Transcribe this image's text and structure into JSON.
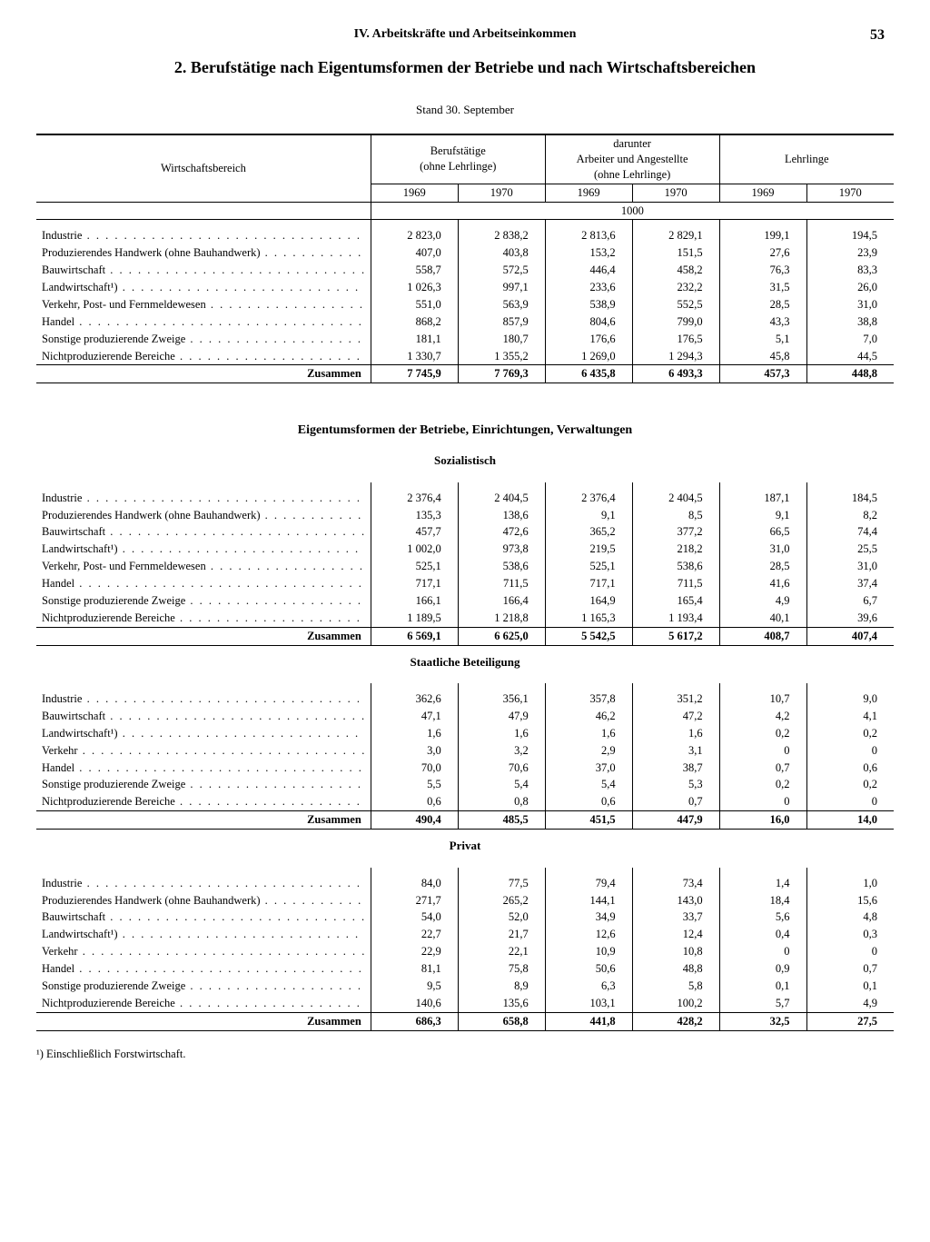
{
  "header": {
    "chapter": "IV. Arbeitskräfte und Arbeitseinkommen",
    "page_number": "53"
  },
  "title": "2. Berufstätige nach Eigentumsformen der Betriebe und nach Wirtschaftsbereichen",
  "stand": "Stand 30. September",
  "columns": {
    "stub": "Wirtschaftsbereich",
    "group1": "Berufstätige\n(ohne Lehrlinge)",
    "group2": "darunter\nArbeiter und Angestellte\n(ohne Lehrlinge)",
    "group3": "Lehrlinge",
    "years": [
      "1969",
      "1970"
    ],
    "unit": "1000"
  },
  "section_title": "Eigentumsformen der Betriebe, Einrichtungen, Verwaltungen",
  "blocks": [
    {
      "subtitle": null,
      "rows": [
        {
          "label": "Industrie",
          "v": [
            "2 823,0",
            "2 838,2",
            "2 813,6",
            "2 829,1",
            "199,1",
            "194,5"
          ]
        },
        {
          "label": "Produzierendes Handwerk (ohne Bauhandwerk)",
          "v": [
            "407,0",
            "403,8",
            "153,2",
            "151,5",
            "27,6",
            "23,9"
          ]
        },
        {
          "label": "Bauwirtschaft",
          "v": [
            "558,7",
            "572,5",
            "446,4",
            "458,2",
            "76,3",
            "83,3"
          ]
        },
        {
          "label": "Landwirtschaft¹)",
          "v": [
            "1 026,3",
            "997,1",
            "233,6",
            "232,2",
            "31,5",
            "26,0"
          ]
        },
        {
          "label": "Verkehr, Post- und Fernmeldewesen",
          "v": [
            "551,0",
            "563,9",
            "538,9",
            "552,5",
            "28,5",
            "31,0"
          ]
        },
        {
          "label": "Handel",
          "v": [
            "868,2",
            "857,9",
            "804,6",
            "799,0",
            "43,3",
            "38,8"
          ]
        },
        {
          "label": "Sonstige produzierende Zweige",
          "v": [
            "181,1",
            "180,7",
            "176,6",
            "176,5",
            "5,1",
            "7,0"
          ]
        },
        {
          "label": "Nichtproduzierende Bereiche",
          "v": [
            "1 330,7",
            "1 355,2",
            "1 269,0",
            "1 294,3",
            "45,8",
            "44,5"
          ]
        }
      ],
      "sum": {
        "label": "Zusammen",
        "v": [
          "7 745,9",
          "7 769,3",
          "6 435,8",
          "6 493,3",
          "457,3",
          "448,8"
        ]
      }
    },
    {
      "subtitle": "Sozialistisch",
      "rows": [
        {
          "label": "Industrie",
          "v": [
            "2 376,4",
            "2 404,5",
            "2 376,4",
            "2 404,5",
            "187,1",
            "184,5"
          ]
        },
        {
          "label": "Produzierendes Handwerk (ohne Bauhandwerk)",
          "v": [
            "135,3",
            "138,6",
            "9,1",
            "8,5",
            "9,1",
            "8,2"
          ]
        },
        {
          "label": "Bauwirtschaft",
          "v": [
            "457,7",
            "472,6",
            "365,2",
            "377,2",
            "66,5",
            "74,4"
          ]
        },
        {
          "label": "Landwirtschaft¹)",
          "v": [
            "1 002,0",
            "973,8",
            "219,5",
            "218,2",
            "31,0",
            "25,5"
          ]
        },
        {
          "label": "Verkehr, Post- und Fernmeldewesen",
          "v": [
            "525,1",
            "538,6",
            "525,1",
            "538,6",
            "28,5",
            "31,0"
          ]
        },
        {
          "label": "Handel",
          "v": [
            "717,1",
            "711,5",
            "717,1",
            "711,5",
            "41,6",
            "37,4"
          ]
        },
        {
          "label": "Sonstige produzierende Zweige",
          "v": [
            "166,1",
            "166,4",
            "164,9",
            "165,4",
            "4,9",
            "6,7"
          ]
        },
        {
          "label": "Nichtproduzierende Bereiche",
          "v": [
            "1 189,5",
            "1 218,8",
            "1 165,3",
            "1 193,4",
            "40,1",
            "39,6"
          ]
        }
      ],
      "sum": {
        "label": "Zusammen",
        "v": [
          "6 569,1",
          "6 625,0",
          "5 542,5",
          "5 617,2",
          "408,7",
          "407,4"
        ]
      }
    },
    {
      "subtitle": "Staatliche Beteiligung",
      "rows": [
        {
          "label": "Industrie",
          "v": [
            "362,6",
            "356,1",
            "357,8",
            "351,2",
            "10,7",
            "9,0"
          ]
        },
        {
          "label": "Bauwirtschaft",
          "v": [
            "47,1",
            "47,9",
            "46,2",
            "47,2",
            "4,2",
            "4,1"
          ]
        },
        {
          "label": "Landwirtschaft¹)",
          "v": [
            "1,6",
            "1,6",
            "1,6",
            "1,6",
            "0,2",
            "0,2"
          ]
        },
        {
          "label": "Verkehr",
          "v": [
            "3,0",
            "3,2",
            "2,9",
            "3,1",
            "0",
            "0"
          ]
        },
        {
          "label": "Handel",
          "v": [
            "70,0",
            "70,6",
            "37,0",
            "38,7",
            "0,7",
            "0,6"
          ]
        },
        {
          "label": "Sonstige produzierende Zweige",
          "v": [
            "5,5",
            "5,4",
            "5,4",
            "5,3",
            "0,2",
            "0,2"
          ]
        },
        {
          "label": "Nichtproduzierende Bereiche",
          "v": [
            "0,6",
            "0,8",
            "0,6",
            "0,7",
            "0",
            "0"
          ]
        }
      ],
      "sum": {
        "label": "Zusammen",
        "v": [
          "490,4",
          "485,5",
          "451,5",
          "447,9",
          "16,0",
          "14,0"
        ]
      }
    },
    {
      "subtitle": "Privat",
      "rows": [
        {
          "label": "Industrie",
          "v": [
            "84,0",
            "77,5",
            "79,4",
            "73,4",
            "1,4",
            "1,0"
          ]
        },
        {
          "label": "Produzierendes Handwerk (ohne Bauhandwerk)",
          "v": [
            "271,7",
            "265,2",
            "144,1",
            "143,0",
            "18,4",
            "15,6"
          ]
        },
        {
          "label": "Bauwirtschaft",
          "v": [
            "54,0",
            "52,0",
            "34,9",
            "33,7",
            "5,6",
            "4,8"
          ]
        },
        {
          "label": "Landwirtschaft¹)",
          "v": [
            "22,7",
            "21,7",
            "12,6",
            "12,4",
            "0,4",
            "0,3"
          ]
        },
        {
          "label": "Verkehr",
          "v": [
            "22,9",
            "22,1",
            "10,9",
            "10,8",
            "0",
            "0"
          ]
        },
        {
          "label": "Handel",
          "v": [
            "81,1",
            "75,8",
            "50,6",
            "48,8",
            "0,9",
            "0,7"
          ]
        },
        {
          "label": "Sonstige produzierende Zweige",
          "v": [
            "9,5",
            "8,9",
            "6,3",
            "5,8",
            "0,1",
            "0,1"
          ]
        },
        {
          "label": "Nichtproduzierende Bereiche",
          "v": [
            "140,6",
            "135,6",
            "103,1",
            "100,2",
            "5,7",
            "4,9"
          ]
        }
      ],
      "sum": {
        "label": "Zusammen",
        "v": [
          "686,3",
          "658,8",
          "441,8",
          "428,2",
          "32,5",
          "27,5"
        ]
      }
    }
  ],
  "footnote": "¹) Einschließlich Forstwirtschaft."
}
